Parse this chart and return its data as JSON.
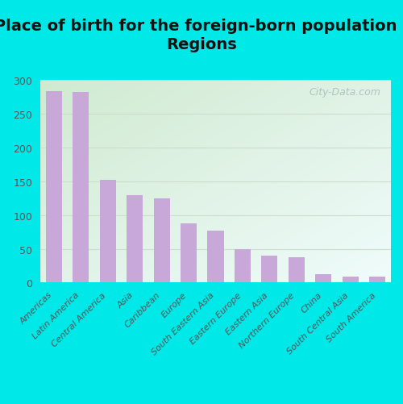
{
  "title": "Place of birth for the foreign-born population -\nRegions",
  "categories": [
    "Americas",
    "Latin America",
    "Central America",
    "Asia",
    "Caribbean",
    "Europe",
    "South Eastern Asia",
    "Eastern Europe",
    "Eastern Asia",
    "Northern Europe",
    "China",
    "South Central Asia",
    "South America"
  ],
  "values": [
    284,
    283,
    152,
    129,
    125,
    88,
    77,
    50,
    40,
    38,
    13,
    9,
    9
  ],
  "bar_color": "#c8a8d8",
  "background_outer": "#00e8e8",
  "background_inner_topleft": "#d0ead0",
  "background_inner_bottomright": "#e8f8f8",
  "grid_color": "#ccddcc",
  "ylim": [
    0,
    300
  ],
  "yticks": [
    0,
    50,
    100,
    150,
    200,
    250,
    300
  ],
  "title_fontsize": 14,
  "tick_label_fontsize": 8,
  "ytick_fontsize": 9,
  "watermark": "City-Data.com",
  "watermark_color": "#aabbbb",
  "title_color": "#111111",
  "tick_color": "#555555"
}
